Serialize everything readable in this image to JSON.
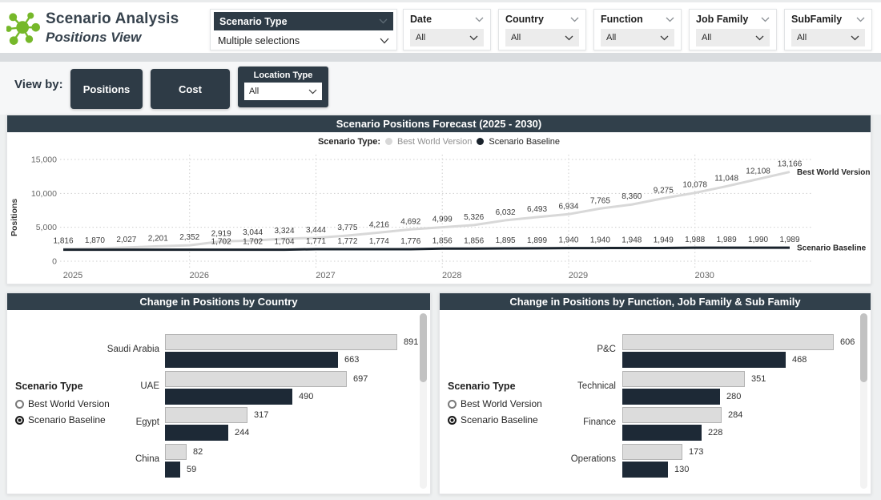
{
  "header": {
    "title": "Scenario Analysis",
    "subtitle": "Positions View",
    "scenario_type_filter": {
      "label": "Scenario Type",
      "value": "Multiple selections"
    },
    "filters": [
      {
        "label": "Date",
        "value": "All"
      },
      {
        "label": "Country",
        "value": "All"
      },
      {
        "label": "Function",
        "value": "All"
      },
      {
        "label": "Job Family",
        "value": "All"
      },
      {
        "label": "SubFamily",
        "value": "All"
      }
    ]
  },
  "viewbar": {
    "label": "View by:",
    "positions_label": "Positions",
    "cost_label": "Cost",
    "location_type": {
      "label": "Location Type",
      "value": "All"
    }
  },
  "colors": {
    "brand_green": "#76b82a",
    "dark_slate": "#2e3b46",
    "panel_header": "#31404b",
    "best_world_series": "#d8d8d8",
    "baseline_series": "#1a232c",
    "bar_gray_fill": "#dcdcdc",
    "bar_gray_border": "#b3b3b3"
  },
  "chart_data": [
    {
      "type": "line",
      "title": "Scenario Positions Forecast (2025 - 2030)",
      "legend_title": "Scenario Type:",
      "ylabel": "Positions",
      "ylim": [
        0,
        15000
      ],
      "y_ticks": [
        "0",
        "5,000",
        "10,000",
        "15,000"
      ],
      "y_tick_values": [
        0,
        5000,
        10000,
        15000
      ],
      "x_year_labels": [
        "2025",
        "2026",
        "2027",
        "2028",
        "2029",
        "2030"
      ],
      "x_year_point_index": [
        0,
        4,
        8,
        12,
        16,
        20
      ],
      "grid": "dotted",
      "legend_position": "top-center",
      "series": [
        {
          "name": "Best World Version",
          "color": "#d8d8d8",
          "values": [
            1816,
            1870,
            2027,
            2201,
            2352,
            2919,
            3044,
            3324,
            3444,
            3775,
            4216,
            4692,
            4999,
            5326,
            6032,
            6493,
            6934,
            7765,
            8360,
            9275,
            10078,
            11048,
            12108,
            13166
          ],
          "labels": [
            "1,816",
            "1,870",
            "2,027",
            "2,201",
            "2,352",
            "2,919",
            "3,044",
            "3,324",
            "3,444",
            "3,775",
            "4,216",
            "4,692",
            "4,999",
            "5,326",
            "6,032",
            "6,493",
            "6,934",
            "7,765",
            "8,360",
            "9,275",
            "10,078",
            "11,048",
            "12,108",
            "13,166"
          ]
        },
        {
          "name": "Scenario Baseline",
          "color": "#1a232c",
          "values": [
            1702,
            1702,
            1702,
            1702,
            1702,
            1702,
            1702,
            1704,
            1771,
            1772,
            1774,
            1776,
            1856,
            1856,
            1895,
            1899,
            1940,
            1940,
            1948,
            1949,
            1988,
            1989,
            1990,
            1989
          ],
          "labels": [
            "",
            "",
            "",
            "",
            "",
            "1,702",
            "1,702",
            "1,704",
            "1,771",
            "1,772",
            "1,774",
            "1,776",
            "1,856",
            "1,856",
            "1,895",
            "1,899",
            "1,940",
            "1,940",
            "1,948",
            "1,949",
            "1,988",
            "1,989",
            "1,990",
            "1,989"
          ]
        }
      ]
    },
    {
      "type": "bar",
      "orientation": "horizontal",
      "title": "Change in Positions by Country",
      "legend": {
        "title": "Scenario Type",
        "items": [
          {
            "label": "Best World Version",
            "selected": false
          },
          {
            "label": "Scenario Baseline",
            "selected": true
          }
        ]
      },
      "categories": [
        "Saudi Arabia",
        "UAE",
        "Egypt",
        "China"
      ],
      "series": [
        {
          "name": "Best World Version",
          "values": [
            891,
            697,
            317,
            82
          ]
        },
        {
          "name": "Scenario Baseline",
          "values": [
            663,
            490,
            244,
            59
          ]
        }
      ]
    },
    {
      "type": "bar",
      "orientation": "horizontal",
      "title": "Change in Positions by Function, Job Family & Sub Family",
      "legend": {
        "title": "Scenario Type",
        "items": [
          {
            "label": "Best World Version",
            "selected": false
          },
          {
            "label": "Scenario Baseline",
            "selected": true
          }
        ]
      },
      "categories": [
        "P&C",
        "Technical",
        "Finance",
        "Operations"
      ],
      "series": [
        {
          "name": "Best World Version",
          "values": [
            606,
            351,
            284,
            173
          ]
        },
        {
          "name": "Scenario Baseline",
          "values": [
            468,
            280,
            228,
            130
          ]
        }
      ]
    }
  ]
}
